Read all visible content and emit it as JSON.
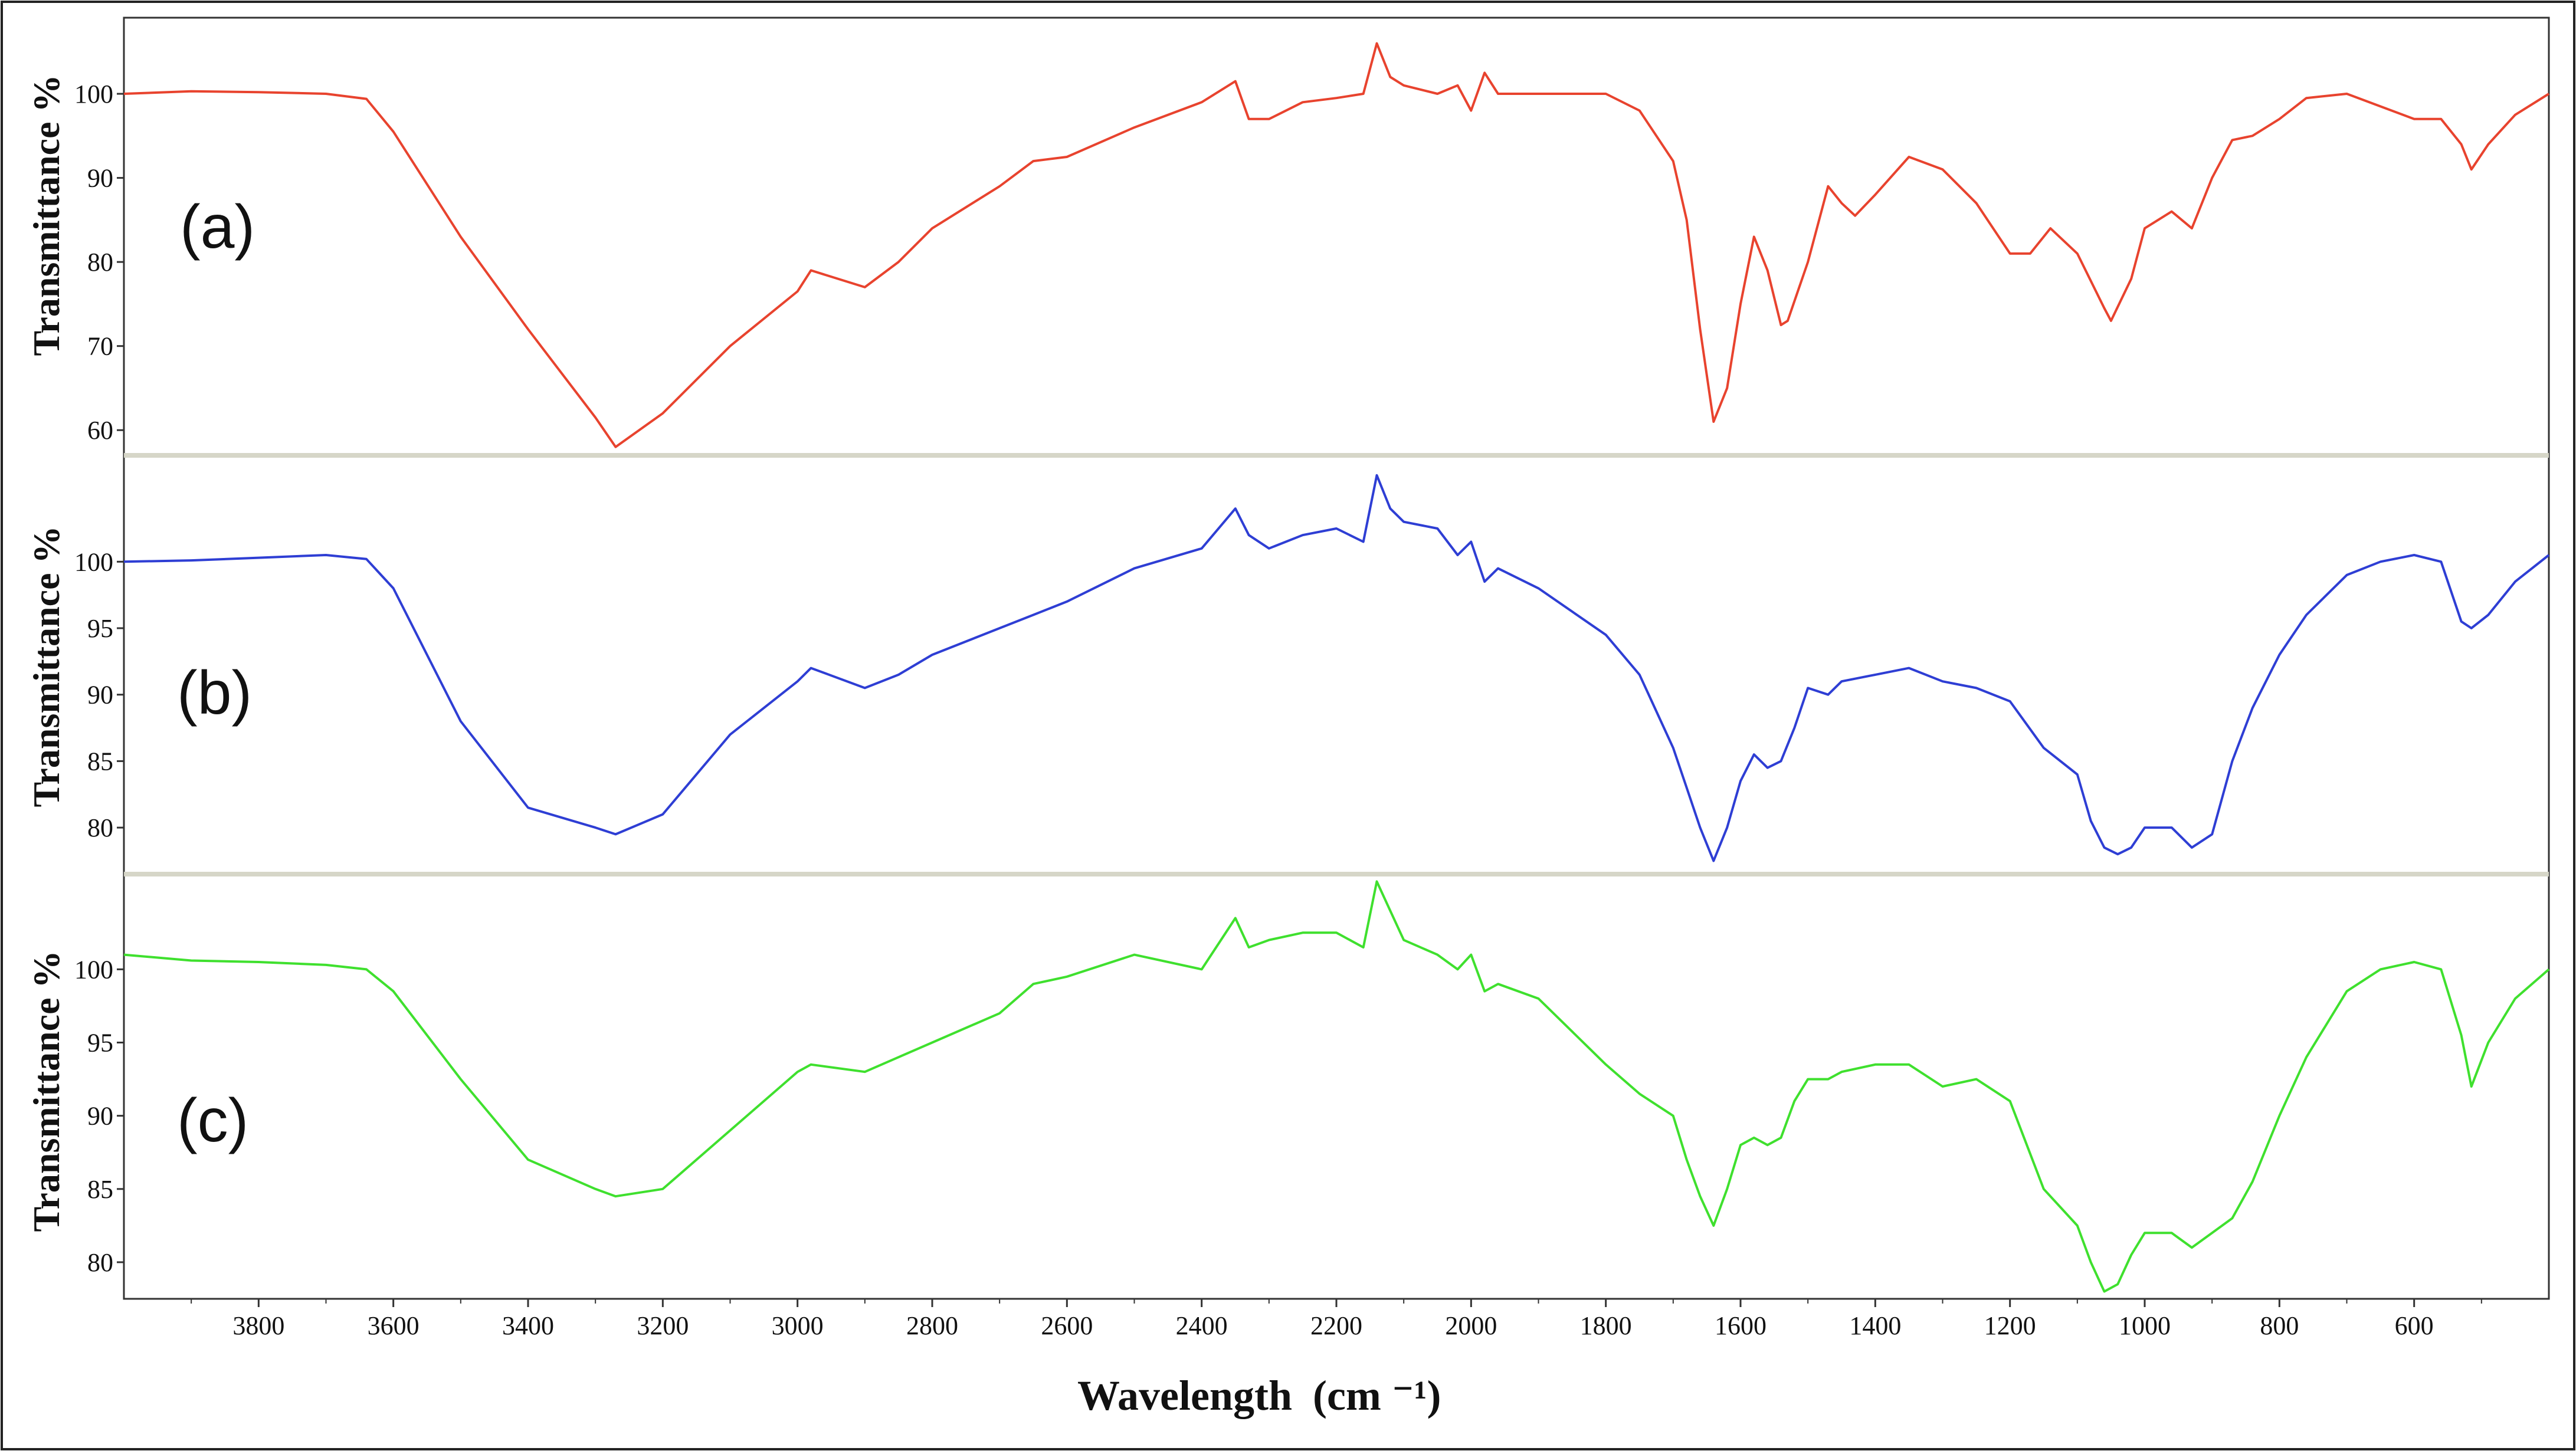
{
  "chart_data": {
    "type": "line",
    "xlabel": "Wavelength",
    "xlabel_unit": "(cm ⁻¹)",
    "x_axis": {
      "reversed": true,
      "xlim": [
        4000,
        400
      ],
      "ticks": [
        3800,
        3600,
        3400,
        3200,
        3000,
        2800,
        2600,
        2400,
        2200,
        2000,
        1800,
        1600,
        1400,
        1200,
        1000,
        800,
        600
      ]
    },
    "grid": false,
    "legend": "none",
    "panels": [
      {
        "label": "(a)",
        "ylabel": "Transmittance %",
        "ylim": [
          57,
          108
        ],
        "yticks": [
          100,
          90,
          80,
          70,
          60
        ],
        "series": [
          {
            "color": "#e8432e",
            "x": [
              4000,
              3900,
              3800,
              3700,
              3640,
              3600,
              3500,
              3400,
              3300,
              3270,
              3200,
              3100,
              3000,
              2980,
              2900,
              2850,
              2800,
              2700,
              2650,
              2600,
              2500,
              2400,
              2350,
              2330,
              2300,
              2250,
              2200,
              2160,
              2140,
              2120,
              2100,
              2050,
              2020,
              2000,
              1980,
              1960,
              1900,
              1800,
              1750,
              1700,
              1680,
              1660,
              1640,
              1620,
              1600,
              1580,
              1560,
              1540,
              1530,
              1500,
              1470,
              1450,
              1430,
              1400,
              1350,
              1300,
              1250,
              1200,
              1170,
              1140,
              1100,
              1060,
              1050,
              1020,
              1000,
              960,
              930,
              900,
              870,
              840,
              800,
              760,
              700,
              650,
              600,
              560,
              530,
              515,
              490,
              450,
              400
            ],
            "y": [
              100,
              100.3,
              100.2,
              100,
              99.4,
              95.5,
              83,
              72,
              61.5,
              58,
              62,
              70,
              76.5,
              79,
              77,
              80,
              84,
              89,
              92,
              92.5,
              96,
              99,
              101.5,
              97,
              97,
              99,
              99.5,
              100,
              106,
              102,
              101,
              100,
              101,
              98,
              102.5,
              100,
              100,
              100,
              98,
              92,
              85,
              72,
              61,
              65,
              75,
              83,
              79,
              72.5,
              73,
              80,
              89,
              87,
              85.5,
              88,
              92.5,
              91,
              87,
              81,
              81,
              84,
              81,
              74.5,
              73,
              78,
              84,
              86,
              84,
              90,
              94.5,
              95,
              97,
              99.5,
              100,
              98.5,
              97,
              97,
              94,
              91,
              94,
              97.5,
              100
            ]
          }
        ]
      },
      {
        "label": "(b)",
        "ylabel": "Transmittance %",
        "ylim": [
          76.5,
          108
        ],
        "yticks": [
          100,
          95,
          90,
          85,
          80
        ],
        "series": [
          {
            "color": "#2e3ed4",
            "x": [
              4000,
              3900,
              3800,
              3700,
              3640,
              3600,
              3500,
              3400,
              3300,
              3270,
              3200,
              3100,
              3000,
              2980,
              2900,
              2850,
              2800,
              2700,
              2650,
              2600,
              2500,
              2400,
              2350,
              2330,
              2300,
              2250,
              2200,
              2160,
              2140,
              2120,
              2100,
              2050,
              2020,
              2000,
              1980,
              1960,
              1900,
              1800,
              1750,
              1700,
              1680,
              1660,
              1640,
              1620,
              1600,
              1580,
              1560,
              1540,
              1520,
              1500,
              1470,
              1450,
              1400,
              1350,
              1300,
              1250,
              1200,
              1150,
              1100,
              1080,
              1060,
              1040,
              1020,
              1000,
              960,
              930,
              900,
              870,
              840,
              800,
              760,
              700,
              650,
              600,
              560,
              530,
              515,
              490,
              450,
              400
            ],
            "y": [
              100,
              100.1,
              100.3,
              100.5,
              100.2,
              98,
              88,
              81.5,
              80,
              79.5,
              81,
              87,
              91,
              92,
              90.5,
              91.5,
              93,
              95,
              96,
              97,
              99.5,
              101,
              104,
              102,
              101,
              102,
              102.5,
              101.5,
              106.5,
              104,
              103,
              102.5,
              100.5,
              101.5,
              98.5,
              99.5,
              98,
              94.5,
              91.5,
              86,
              83,
              80,
              77.5,
              80,
              83.5,
              85.5,
              84.5,
              85,
              87.5,
              90.5,
              90,
              91,
              91.5,
              92,
              91,
              90.5,
              89.5,
              86,
              84,
              80.5,
              78.5,
              78,
              78.5,
              80,
              80,
              78.5,
              79.5,
              85,
              89,
              93,
              96,
              99,
              100,
              100.5,
              100,
              95.5,
              95,
              96,
              98.5,
              100.5
            ]
          }
        ]
      },
      {
        "label": "(c)",
        "ylabel": "Transmittance %",
        "ylim": [
          77.5,
          106.5
        ],
        "yticks": [
          100,
          95,
          90,
          85,
          80
        ],
        "series": [
          {
            "color": "#3fe02e",
            "x": [
              4000,
              3900,
              3800,
              3700,
              3640,
              3600,
              3500,
              3400,
              3300,
              3270,
              3200,
              3100,
              3000,
              2980,
              2900,
              2850,
              2800,
              2700,
              2650,
              2600,
              2500,
              2400,
              2350,
              2330,
              2300,
              2250,
              2200,
              2160,
              2140,
              2120,
              2100,
              2050,
              2020,
              2000,
              1980,
              1960,
              1900,
              1800,
              1750,
              1700,
              1680,
              1660,
              1640,
              1620,
              1600,
              1580,
              1560,
              1540,
              1520,
              1500,
              1470,
              1450,
              1400,
              1350,
              1300,
              1250,
              1200,
              1150,
              1100,
              1080,
              1060,
              1040,
              1020,
              1000,
              960,
              930,
              900,
              870,
              840,
              800,
              760,
              700,
              650,
              600,
              560,
              530,
              515,
              490,
              450,
              400
            ],
            "y": [
              101,
              100.6,
              100.5,
              100.3,
              100,
              98.5,
              92.5,
              87,
              85,
              84.5,
              85,
              89,
              93,
              93.5,
              93,
              94,
              95,
              97,
              99,
              99.5,
              101,
              100,
              103.5,
              101.5,
              102,
              102.5,
              102.5,
              101.5,
              106,
              104,
              102,
              101,
              100,
              101,
              98.5,
              99,
              98,
              93.5,
              91.5,
              90,
              87,
              84.5,
              82.5,
              85,
              88,
              88.5,
              88,
              88.5,
              91,
              92.5,
              92.5,
              93,
              93.5,
              93.5,
              92,
              92.5,
              91,
              85,
              82.5,
              80,
              78,
              78.5,
              80.5,
              82,
              82,
              81,
              82,
              83,
              85.5,
              90,
              94,
              98.5,
              100,
              100.5,
              100,
              95.5,
              92,
              95,
              98,
              100
            ]
          }
        ]
      }
    ]
  }
}
